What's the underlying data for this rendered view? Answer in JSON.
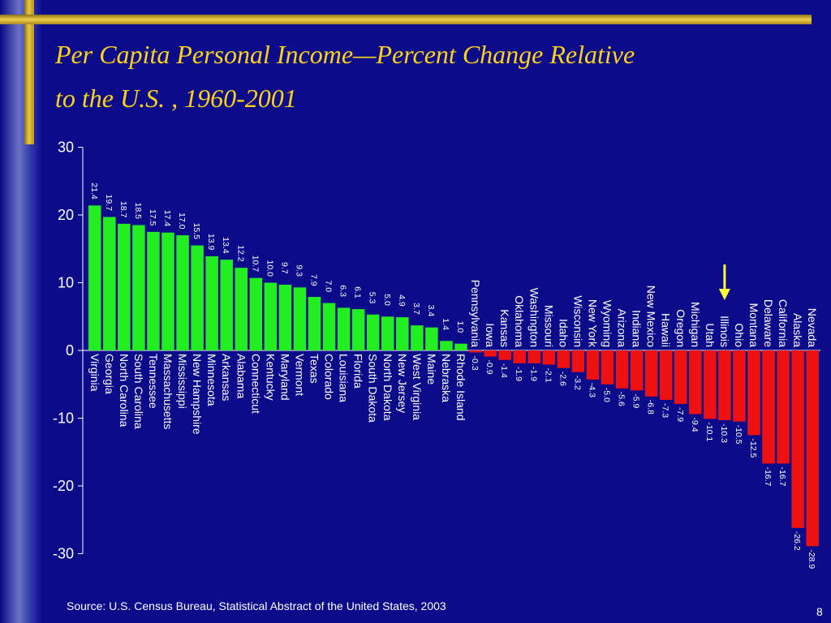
{
  "slide": {
    "title_line1": "Per Capita Personal Income—Percent Change Relative",
    "title_line2": "to the U.S. , 1960-2001",
    "source": "Source:  U.S. Census Bureau, Statistical Abstract of the United States, 2003",
    "page_number": "8"
  },
  "colors": {
    "background": "#0c0c8a",
    "title": "#ffd21a",
    "positive_bar": "#22ee22",
    "negative_bar": "#ee1111",
    "text": "#ffffff",
    "highlight_arrow": "#ffff33"
  },
  "chart_data": {
    "type": "bar",
    "title": "Per Capita Personal Income—Percent Change Relative to the U.S. , 1960-2001",
    "xlabel": "",
    "ylabel": "",
    "ylim": [
      -30,
      30
    ],
    "yticks": [
      30,
      20,
      10,
      0,
      -10,
      -20,
      -30
    ],
    "grid": false,
    "categories": [
      "Virginia",
      "Georgia",
      "North Carolina",
      "South Carolina",
      "Tennessee",
      "Massachusetts",
      "Mississippi",
      "New Hampshire",
      "Minnesota",
      "Arkansas",
      "Alabama",
      "Connecticut",
      "Kentucky",
      "Maryland",
      "Vermont",
      "Texas",
      "Colorado",
      "Louisiana",
      "Florida",
      "South Dakota",
      "North Dakota",
      "New Jersey",
      "West Virginia",
      "Maine",
      "Nebraska",
      "Rhode Island",
      "Pennsylvania",
      "Iowa",
      "Kansas",
      "Oklahoma",
      "Washington",
      "Missouri",
      "Idaho",
      "Wisconsin",
      "New York",
      "Wyoming",
      "Arizona",
      "Indiana",
      "New Mexico",
      "Hawaii",
      "Oregon",
      "Michigan",
      "Utah",
      "Illinois",
      "Ohio",
      "Montana",
      "Delaware",
      "California",
      "Alaska",
      "Nevada"
    ],
    "values": [
      21.4,
      19.7,
      18.7,
      18.5,
      17.5,
      17.4,
      17.0,
      15.5,
      13.9,
      13.4,
      12.2,
      10.7,
      10.0,
      9.7,
      9.3,
      7.9,
      7.0,
      6.3,
      6.1,
      5.3,
      5.0,
      4.9,
      3.7,
      3.4,
      1.4,
      1.0,
      -0.3,
      -0.9,
      -1.4,
      -1.9,
      -1.9,
      -2.1,
      -2.6,
      -3.2,
      -4.3,
      -5.0,
      -5.6,
      -5.9,
      -6.8,
      -7.3,
      -7.9,
      -9.4,
      -10.1,
      -10.3,
      -10.5,
      -12.5,
      -16.7,
      -16.7,
      -26.2,
      -28.9
    ],
    "labels": [
      "21.4",
      "19.7",
      "18.7",
      "18.5",
      "17.5",
      "17.4",
      "17.0",
      "15.5",
      "13.9",
      "13.4",
      "12.2",
      "10.7",
      "10.0",
      "9.7",
      "9.3",
      "7.9",
      "7.0",
      "6.3",
      "6.1",
      "5.3",
      "5.0",
      "4.9",
      "3.7",
      "3.4",
      "1.4",
      "1.0",
      "-0.3",
      "-0.9",
      "-1.4",
      "-1.9",
      "-1.9",
      "-2.1",
      "-2.6",
      "-3.2",
      "-4.3",
      "-5.0",
      "-5.6",
      "-5.9",
      "-6.8",
      "-7.3",
      "-7.9",
      "-9.4",
      "-10.1",
      "-10.3",
      "-10.5",
      "-12.5",
      "-16.7",
      "-16.7",
      "-26.2",
      "-28.9"
    ],
    "highlighted_category": "Illinois"
  }
}
